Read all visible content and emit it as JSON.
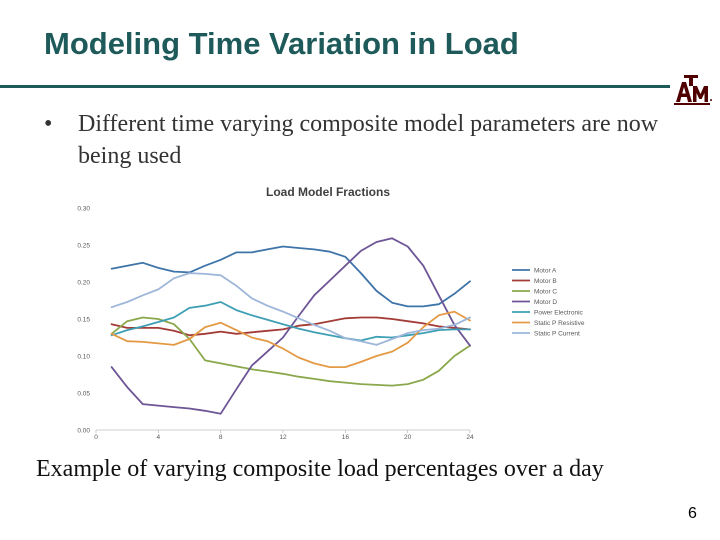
{
  "slide": {
    "title": "Modeling Time Variation in Load",
    "bullet_marker": "•",
    "bullet_text": "Different time varying composite model parameters are now being used",
    "caption": "Example of varying composite load percentages over a day",
    "page_number": "6",
    "logo": {
      "icon": "texas-am-logo-icon",
      "color": "#500000"
    },
    "accent_color": "#1f5a5a"
  },
  "chart_data": {
    "type": "line",
    "title": "Load Model Fractions",
    "xlabel": "",
    "ylabel": "",
    "xlim": [
      0,
      24
    ],
    "ylim": [
      0.0,
      0.3
    ],
    "x_ticks": [
      "0",
      "4",
      "8",
      "12",
      "16",
      "20",
      "24"
    ],
    "y_ticks": [
      "0.00",
      "0.05",
      "0.10",
      "0.15",
      "0.20",
      "0.25",
      "0.30"
    ],
    "grid": false,
    "legend_position": "right",
    "x": [
      1,
      2,
      3,
      4,
      5,
      6,
      7,
      8,
      9,
      10,
      11,
      12,
      13,
      14,
      15,
      16,
      17,
      18,
      19,
      20,
      21,
      22,
      23,
      24
    ],
    "series": [
      {
        "name": "Motor A",
        "color": "#3e74a8",
        "values": [
          0.218,
          0.222,
          0.226,
          0.219,
          0.214,
          0.213,
          0.222,
          0.23,
          0.24,
          0.24,
          0.244,
          0.248,
          0.246,
          0.244,
          0.241,
          0.234,
          0.212,
          0.188,
          0.172,
          0.167,
          0.167,
          0.17,
          0.184,
          0.201
        ]
      },
      {
        "name": "Motor B",
        "color": "#a33b36",
        "values": [
          0.143,
          0.138,
          0.138,
          0.138,
          0.134,
          0.128,
          0.13,
          0.133,
          0.13,
          0.132,
          0.134,
          0.136,
          0.141,
          0.143,
          0.147,
          0.151,
          0.152,
          0.152,
          0.15,
          0.147,
          0.144,
          0.14,
          0.138,
          0.136
        ]
      },
      {
        "name": "Motor C",
        "color": "#8aa84b",
        "values": [
          0.13,
          0.147,
          0.152,
          0.15,
          0.143,
          0.123,
          0.094,
          0.09,
          0.086,
          0.082,
          0.079,
          0.076,
          0.072,
          0.069,
          0.066,
          0.064,
          0.062,
          0.061,
          0.06,
          0.062,
          0.068,
          0.08,
          0.1,
          0.114
        ]
      },
      {
        "name": "Motor D",
        "color": "#6d5596",
        "values": [
          0.085,
          0.058,
          0.035,
          0.033,
          0.031,
          0.029,
          0.026,
          0.022,
          0.055,
          0.087,
          0.106,
          0.125,
          0.154,
          0.182,
          0.202,
          0.222,
          0.242,
          0.254,
          0.259,
          0.248,
          0.222,
          0.182,
          0.142,
          0.114
        ]
      },
      {
        "name": "Power Electronic",
        "color": "#3e9fb4",
        "values": [
          0.128,
          0.135,
          0.14,
          0.146,
          0.152,
          0.165,
          0.168,
          0.173,
          0.162,
          0.155,
          0.149,
          0.143,
          0.137,
          0.132,
          0.128,
          0.124,
          0.121,
          0.126,
          0.125,
          0.128,
          0.131,
          0.135,
          0.136,
          0.136
        ]
      },
      {
        "name": "Static P Resistive",
        "color": "#e49a45",
        "values": [
          0.13,
          0.12,
          0.119,
          0.117,
          0.115,
          0.123,
          0.139,
          0.145,
          0.135,
          0.125,
          0.12,
          0.11,
          0.098,
          0.09,
          0.085,
          0.085,
          0.092,
          0.1,
          0.106,
          0.118,
          0.139,
          0.155,
          0.16,
          0.148
        ]
      },
      {
        "name": "Static P Current",
        "color": "#9db6d9",
        "values": [
          0.166,
          0.173,
          0.182,
          0.19,
          0.205,
          0.212,
          0.211,
          0.209,
          0.195,
          0.178,
          0.168,
          0.16,
          0.151,
          0.142,
          0.134,
          0.124,
          0.12,
          0.115,
          0.123,
          0.131,
          0.135,
          0.137,
          0.142,
          0.152
        ]
      }
    ]
  }
}
